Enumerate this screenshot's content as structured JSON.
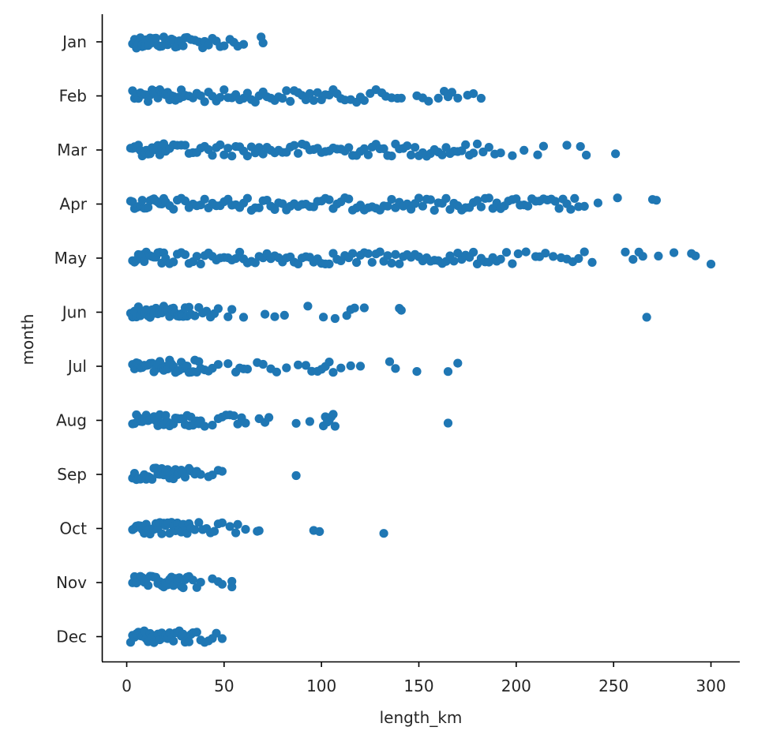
{
  "chart_data": {
    "type": "scatter",
    "xlabel": "length_km",
    "ylabel": "month",
    "xlim": [
      -12,
      315
    ],
    "xticks": [
      0,
      50,
      100,
      150,
      200,
      250,
      300
    ],
    "categories": [
      "Jan",
      "Feb",
      "Mar",
      "Apr",
      "May",
      "Jun",
      "Jul",
      "Aug",
      "Sep",
      "Oct",
      "Nov",
      "Dec"
    ],
    "point_color": "#1f77b4",
    "series": [
      {
        "category": "Jan",
        "values": [
          3,
          4,
          5,
          5,
          6,
          6,
          7,
          8,
          8,
          9,
          10,
          10,
          11,
          12,
          13,
          14,
          15,
          16,
          17,
          18,
          19,
          20,
          21,
          22,
          23,
          24,
          25,
          26,
          27,
          28,
          29,
          30,
          31,
          33,
          35,
          37,
          39,
          40,
          42,
          44,
          46,
          48,
          50,
          53,
          55,
          57,
          60,
          69,
          70
        ]
      },
      {
        "category": "Feb",
        "values": [
          3,
          4,
          5,
          6,
          7,
          8,
          9,
          10,
          11,
          12,
          13,
          14,
          15,
          16,
          17,
          18,
          19,
          20,
          21,
          22,
          23,
          24,
          25,
          26,
          27,
          28,
          29,
          30,
          32,
          34,
          36,
          38,
          40,
          42,
          44,
          46,
          48,
          50,
          52,
          54,
          56,
          58,
          60,
          62,
          64,
          66,
          68,
          70,
          72,
          74,
          76,
          78,
          80,
          82,
          84,
          86,
          88,
          90,
          92,
          94,
          96,
          98,
          100,
          102,
          104,
          106,
          108,
          110,
          112,
          115,
          118,
          120,
          122,
          125,
          128,
          131,
          133,
          136,
          139,
          141,
          149,
          152,
          155,
          160,
          163,
          165,
          167,
          170,
          175,
          178,
          182
        ]
      },
      {
        "category": "Mar",
        "values": [
          2,
          3,
          4,
          5,
          6,
          7,
          8,
          9,
          10,
          11,
          12,
          13,
          14,
          15,
          16,
          17,
          18,
          19,
          20,
          22,
          24,
          26,
          28,
          30,
          32,
          34,
          36,
          38,
          40,
          42,
          44,
          46,
          48,
          50,
          52,
          54,
          56,
          58,
          60,
          62,
          64,
          66,
          68,
          70,
          72,
          74,
          76,
          78,
          80,
          82,
          84,
          86,
          88,
          90,
          92,
          94,
          96,
          98,
          100,
          102,
          104,
          106,
          108,
          110,
          112,
          114,
          116,
          118,
          120,
          122,
          124,
          126,
          128,
          130,
          132,
          134,
          136,
          138,
          140,
          142,
          144,
          146,
          148,
          150,
          152,
          154,
          156,
          158,
          160,
          162,
          164,
          166,
          168,
          170,
          172,
          174,
          176,
          178,
          180,
          183,
          186,
          189,
          192,
          198,
          204,
          211,
          214,
          226,
          233,
          236,
          251
        ]
      },
      {
        "category": "Apr",
        "values": [
          2,
          3,
          4,
          5,
          6,
          7,
          8,
          9,
          10,
          11,
          12,
          13,
          14,
          15,
          16,
          17,
          18,
          19,
          20,
          22,
          24,
          26,
          28,
          30,
          32,
          34,
          36,
          38,
          40,
          42,
          44,
          46,
          48,
          50,
          52,
          54,
          56,
          58,
          60,
          62,
          64,
          66,
          68,
          70,
          72,
          74,
          76,
          78,
          80,
          82,
          84,
          86,
          88,
          90,
          92,
          94,
          96,
          98,
          100,
          102,
          104,
          106,
          108,
          110,
          112,
          114,
          116,
          118,
          120,
          122,
          124,
          126,
          128,
          130,
          132,
          134,
          136,
          138,
          140,
          142,
          144,
          146,
          148,
          150,
          152,
          154,
          156,
          158,
          160,
          162,
          164,
          166,
          168,
          170,
          172,
          174,
          176,
          178,
          180,
          182,
          184,
          186,
          188,
          190,
          192,
          194,
          196,
          198,
          200,
          202,
          204,
          206,
          208,
          210,
          212,
          214,
          216,
          218,
          220,
          222,
          224,
          226,
          228,
          230,
          232,
          235,
          242,
          252,
          270,
          272
        ]
      },
      {
        "category": "May",
        "values": [
          3,
          4,
          5,
          6,
          7,
          8,
          9,
          10,
          11,
          12,
          13,
          14,
          15,
          16,
          17,
          18,
          19,
          20,
          22,
          24,
          26,
          28,
          30,
          32,
          34,
          36,
          38,
          40,
          42,
          44,
          46,
          48,
          50,
          52,
          54,
          56,
          58,
          60,
          62,
          64,
          66,
          68,
          70,
          72,
          74,
          76,
          78,
          80,
          82,
          84,
          86,
          88,
          90,
          92,
          94,
          96,
          98,
          100,
          102,
          104,
          106,
          108,
          110,
          112,
          114,
          116,
          118,
          120,
          122,
          124,
          126,
          128,
          130,
          132,
          134,
          136,
          138,
          140,
          142,
          144,
          146,
          148,
          150,
          152,
          154,
          156,
          158,
          160,
          162,
          164,
          166,
          168,
          170,
          172,
          174,
          176,
          178,
          180,
          182,
          184,
          186,
          188,
          190,
          192,
          195,
          198,
          201,
          205,
          210,
          212,
          215,
          219,
          223,
          226,
          229,
          232,
          235,
          239,
          256,
          260,
          263,
          265,
          273,
          281,
          290,
          292,
          300
        ]
      },
      {
        "category": "Jun",
        "values": [
          2,
          3,
          4,
          5,
          6,
          7,
          8,
          9,
          10,
          11,
          12,
          13,
          14,
          15,
          16,
          17,
          18,
          19,
          20,
          21,
          22,
          23,
          24,
          25,
          26,
          27,
          28,
          29,
          30,
          31,
          32,
          33,
          35,
          37,
          39,
          41,
          43,
          45,
          47,
          52,
          54,
          60,
          71,
          76,
          81,
          93,
          101,
          107,
          113,
          115,
          117,
          122,
          140,
          141,
          267
        ]
      },
      {
        "category": "Jul",
        "values": [
          3,
          4,
          5,
          6,
          7,
          8,
          9,
          10,
          11,
          12,
          13,
          14,
          15,
          16,
          17,
          18,
          19,
          20,
          21,
          22,
          23,
          24,
          25,
          26,
          27,
          28,
          29,
          30,
          31,
          32,
          33,
          34,
          35,
          36,
          37,
          38,
          40,
          42,
          44,
          47,
          52,
          56,
          58,
          60,
          62,
          67,
          70,
          74,
          77,
          82,
          88,
          92,
          95,
          98,
          100,
          102,
          104,
          106,
          110,
          115,
          120,
          135,
          138,
          149,
          165,
          170
        ]
      },
      {
        "category": "Aug",
        "values": [
          3,
          4,
          5,
          6,
          7,
          8,
          9,
          10,
          11,
          12,
          13,
          14,
          15,
          16,
          17,
          18,
          19,
          20,
          21,
          22,
          23,
          24,
          25,
          26,
          27,
          28,
          29,
          30,
          31,
          32,
          33,
          34,
          35,
          36,
          37,
          38,
          40,
          44,
          47,
          49,
          51,
          53,
          55,
          57,
          59,
          61,
          68,
          71,
          73,
          87,
          94,
          101,
          102,
          103,
          104,
          105,
          106,
          107,
          165
        ]
      },
      {
        "category": "Sep",
        "values": [
          3,
          4,
          5,
          6,
          7,
          8,
          9,
          10,
          11,
          12,
          13,
          14,
          15,
          16,
          17,
          18,
          19,
          20,
          21,
          22,
          23,
          24,
          25,
          26,
          27,
          28,
          29,
          30,
          32,
          33,
          35,
          36,
          38,
          42,
          44,
          47,
          49,
          87
        ]
      },
      {
        "category": "Oct",
        "values": [
          3,
          4,
          5,
          6,
          7,
          8,
          9,
          10,
          11,
          12,
          13,
          14,
          15,
          16,
          17,
          18,
          19,
          20,
          21,
          22,
          23,
          24,
          25,
          26,
          27,
          28,
          29,
          30,
          31,
          32,
          33,
          35,
          37,
          39,
          41,
          43,
          45,
          47,
          49,
          53,
          56,
          57,
          61,
          67,
          68,
          96,
          99,
          132
        ]
      },
      {
        "category": "Nov",
        "values": [
          3,
          4,
          5,
          6,
          7,
          8,
          9,
          10,
          11,
          12,
          13,
          14,
          15,
          16,
          17,
          18,
          19,
          20,
          21,
          22,
          23,
          24,
          25,
          26,
          27,
          28,
          29,
          30,
          31,
          32,
          34,
          36,
          38,
          44,
          47,
          49,
          54,
          54
        ]
      },
      {
        "category": "Dec",
        "values": [
          2,
          3,
          4,
          5,
          6,
          7,
          8,
          9,
          10,
          11,
          12,
          13,
          14,
          15,
          16,
          17,
          18,
          19,
          20,
          21,
          22,
          23,
          24,
          25,
          26,
          27,
          28,
          29,
          30,
          31,
          32,
          33,
          34,
          36,
          38,
          40,
          42,
          44,
          46,
          49
        ]
      }
    ]
  }
}
